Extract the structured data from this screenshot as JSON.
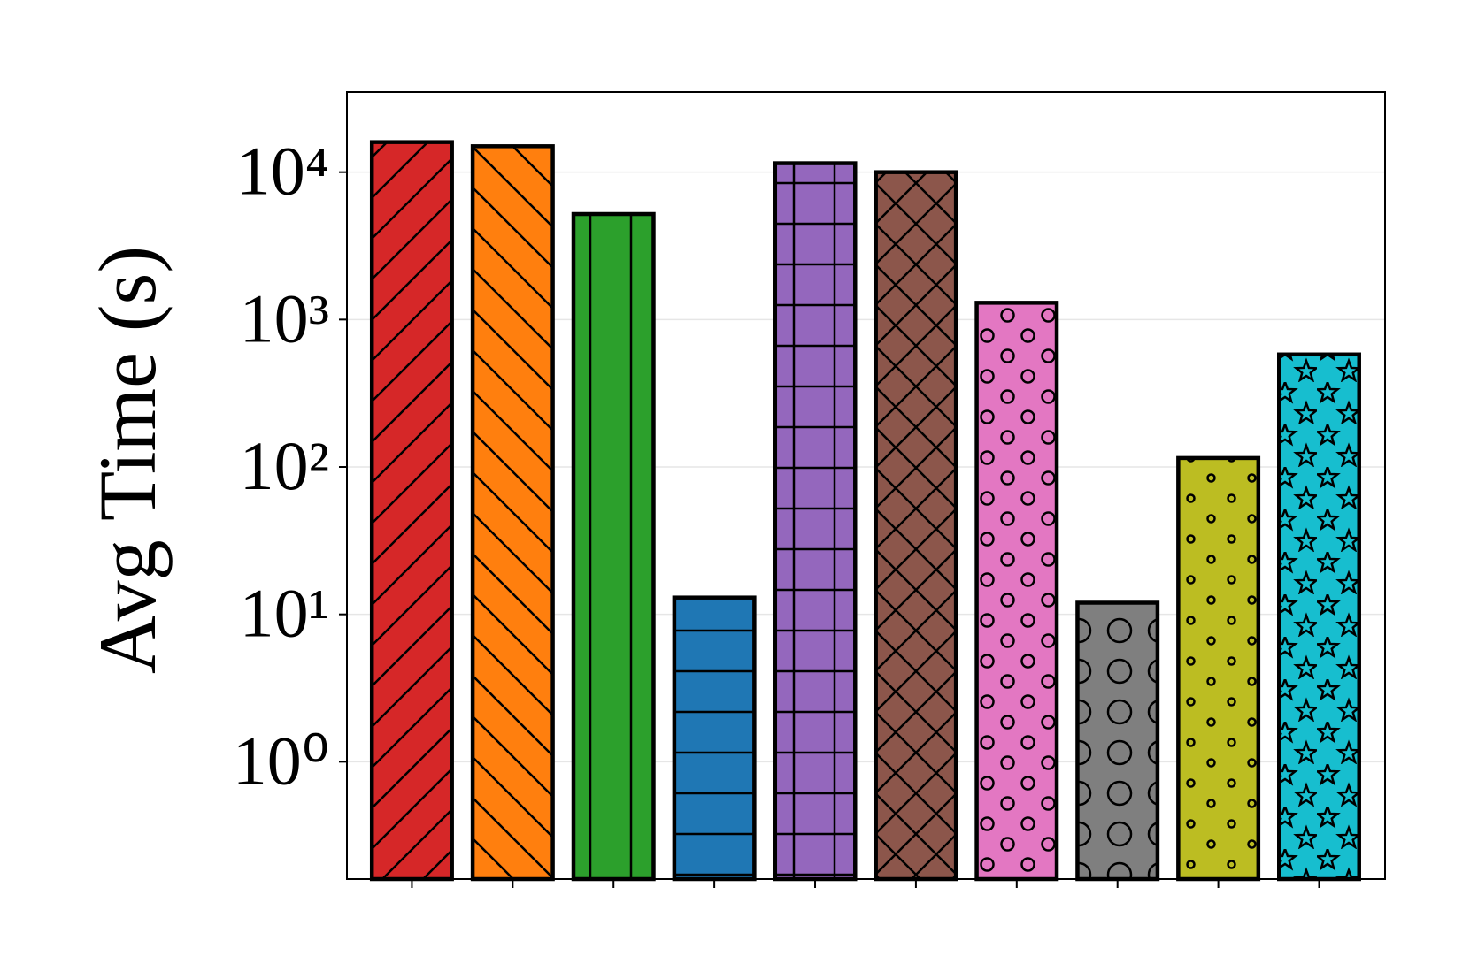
{
  "chart_data": {
    "type": "bar",
    "y_label": "Avg Time (s)",
    "categories": [
      null,
      null,
      null,
      null,
      null,
      null,
      null,
      null,
      null,
      null
    ],
    "values": [
      16000,
      15000,
      5200,
      13,
      11500,
      10000,
      1300,
      12,
      115,
      580
    ],
    "colors": [
      "#d62728",
      "#ff7f0e",
      "#2ca02c",
      "#1f77b4",
      "#9467bd",
      "#8c564b",
      "#e377c2",
      "#7f7f7f",
      "#bcbd22",
      "#17becf"
    ],
    "hatches": [
      "/",
      "\\",
      "|",
      "-",
      "+",
      "x",
      "o",
      "O",
      ".",
      "*"
    ],
    "log_scale": true,
    "ylim": [
      0.16,
      35000
    ],
    "yticks": [
      {
        "value": 1,
        "label": "10⁰"
      },
      {
        "value": 10,
        "label": "10¹"
      },
      {
        "value": 100,
        "label": "10²"
      },
      {
        "value": 1000,
        "label": "10³"
      },
      {
        "value": 10000,
        "label": "10⁴"
      }
    ],
    "grid": true
  }
}
